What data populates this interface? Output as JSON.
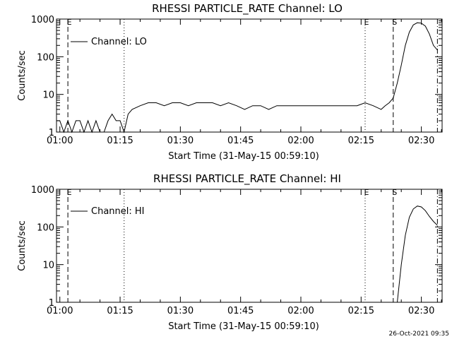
{
  "timestamp": "26-Oct-2021 09:35",
  "chart_data": [
    {
      "type": "line",
      "title": "RHESSI PARTICLE_RATE Channel: LO",
      "xlabel": "Start Time (31-May-15 00:59:10)",
      "ylabel": "Counts/sec",
      "yscale": "log",
      "ylim": [
        1,
        1000
      ],
      "xlim": [
        "00:59:10",
        "02:35:10"
      ],
      "x_ticks": [
        "01:00",
        "01:15",
        "01:30",
        "01:45",
        "02:00",
        "02:15",
        "02:30"
      ],
      "y_ticks": [
        "1",
        "10",
        "100",
        "1000"
      ],
      "legend": {
        "label": "Channel: LO",
        "placement": "top-left"
      },
      "markers": [
        {
          "time": "01:02",
          "style": "dashed",
          "label": "E"
        },
        {
          "time": "01:16",
          "style": "dotted",
          "label": ""
        },
        {
          "time": "02:16",
          "style": "dotted",
          "label": "E"
        },
        {
          "time": "02:23",
          "style": "dashed",
          "label": "S"
        },
        {
          "time": "02:34",
          "style": "dashdot",
          "label": ""
        }
      ],
      "series": [
        {
          "name": "Channel: LO",
          "x": [
            "00:59:10",
            "01:00",
            "01:01",
            "01:02",
            "01:03",
            "01:04",
            "01:05",
            "01:06",
            "01:07",
            "01:08",
            "01:09",
            "01:10",
            "01:11",
            "01:12",
            "01:13",
            "01:14",
            "01:15",
            "01:16",
            "01:17",
            "01:18",
            "01:20",
            "01:22",
            "01:24",
            "01:26",
            "01:28",
            "01:30",
            "01:32",
            "01:34",
            "01:36",
            "01:38",
            "01:40",
            "01:42",
            "01:44",
            "01:46",
            "01:48",
            "01:50",
            "01:52",
            "01:54",
            "01:56",
            "01:58",
            "02:00",
            "02:02",
            "02:04",
            "02:06",
            "02:08",
            "02:10",
            "02:12",
            "02:14",
            "02:16",
            "02:18",
            "02:20",
            "02:21",
            "02:22",
            "02:23",
            "02:24",
            "02:25",
            "02:26",
            "02:27",
            "02:28",
            "02:29",
            "02:30",
            "02:31",
            "02:32",
            "02:33",
            "02:34"
          ],
          "values": [
            2,
            2,
            1,
            2,
            1,
            2,
            2,
            1,
            2,
            1,
            2,
            1,
            1,
            2,
            3,
            2,
            2,
            1,
            3,
            4,
            5,
            6,
            6,
            5,
            6,
            6,
            5,
            6,
            6,
            6,
            5,
            6,
            5,
            4,
            5,
            5,
            4,
            5,
            5,
            5,
            5,
            5,
            5,
            5,
            5,
            5,
            5,
            5,
            6,
            5,
            4,
            5,
            6,
            8,
            20,
            60,
            200,
            450,
            700,
            800,
            780,
            650,
            400,
            200,
            150
          ]
        }
      ]
    },
    {
      "type": "line",
      "title": "RHESSI PARTICLE_RATE Channel: HI",
      "xlabel": "Start Time (31-May-15 00:59:10)",
      "ylabel": "Counts/sec",
      "yscale": "log",
      "ylim": [
        1,
        1000
      ],
      "xlim": [
        "00:59:10",
        "02:35:10"
      ],
      "x_ticks": [
        "01:00",
        "01:15",
        "01:30",
        "01:45",
        "02:00",
        "02:15",
        "02:30"
      ],
      "y_ticks": [
        "1",
        "10",
        "100",
        "1000"
      ],
      "legend": {
        "label": "Channel: HI",
        "placement": "top-left"
      },
      "markers": [
        {
          "time": "01:02",
          "style": "dashed",
          "label": "E"
        },
        {
          "time": "01:16",
          "style": "dotted",
          "label": ""
        },
        {
          "time": "02:16",
          "style": "dotted",
          "label": "E"
        },
        {
          "time": "02:23",
          "style": "dashed",
          "label": "S"
        },
        {
          "time": "02:34",
          "style": "dashdot",
          "label": ""
        }
      ],
      "series": [
        {
          "name": "Channel: HI",
          "x": [
            "02:24",
            "02:25",
            "02:26",
            "02:27",
            "02:28",
            "02:29",
            "02:30",
            "02:31",
            "02:32",
            "02:33",
            "02:34"
          ],
          "values": [
            1,
            10,
            60,
            180,
            300,
            360,
            340,
            270,
            190,
            140,
            110
          ]
        }
      ]
    }
  ]
}
